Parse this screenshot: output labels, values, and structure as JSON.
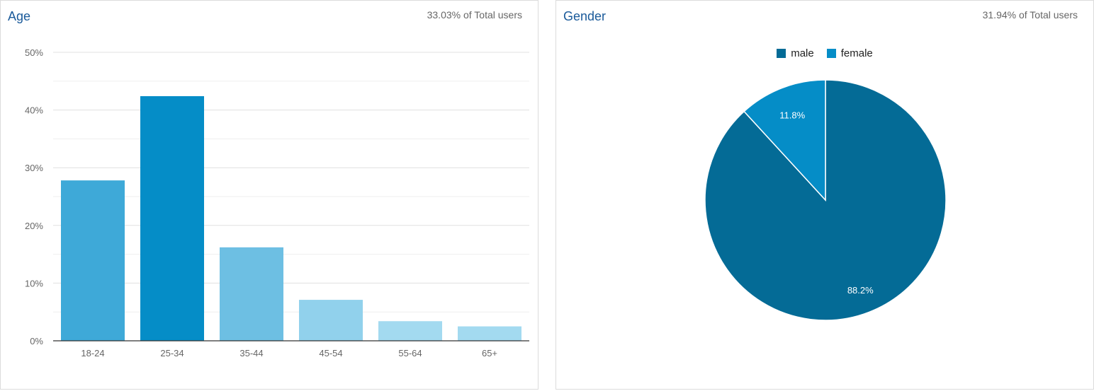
{
  "age_card": {
    "title": "Age",
    "subtitle": "33.03% of Total users"
  },
  "gender_card": {
    "title": "Gender",
    "subtitle": "31.94% of Total users",
    "legend": [
      {
        "label": "male",
        "color": "#046b96"
      },
      {
        "label": "female",
        "color": "#058dc7"
      }
    ]
  },
  "chart_data": [
    {
      "type": "bar",
      "title": "Age",
      "categories": [
        "18-24",
        "25-34",
        "35-44",
        "45-54",
        "55-64",
        "65+"
      ],
      "values": [
        27.8,
        42.4,
        16.2,
        7.1,
        3.4,
        2.5
      ],
      "colors": [
        "#3ea9d8",
        "#058dc7",
        "#6dbfe3",
        "#91d1ec",
        "#a3daf0",
        "#a3daf0"
      ],
      "yticks": [
        "0%",
        "10%",
        "20%",
        "30%",
        "40%",
        "50%"
      ],
      "ylim": [
        0,
        50
      ],
      "grid": true
    },
    {
      "type": "pie",
      "title": "Gender",
      "labels": [
        "male",
        "female"
      ],
      "values": [
        88.2,
        11.8
      ],
      "value_labels": [
        "88.2%",
        "11.8%"
      ],
      "colors": [
        "#046b96",
        "#058dc7"
      ],
      "legend": "top"
    }
  ]
}
